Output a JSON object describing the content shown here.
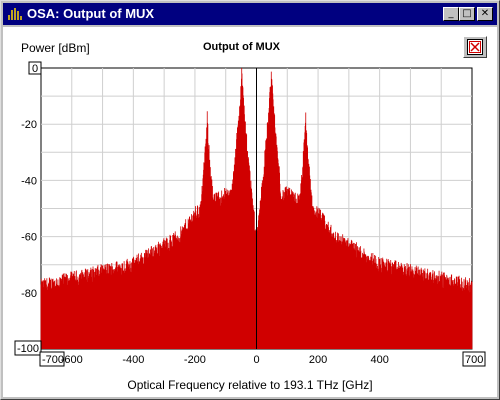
{
  "window": {
    "title": "OSA: Output of MUX",
    "buttons": {
      "minimize": "_",
      "maximize": "□",
      "close": "✕"
    }
  },
  "chart_data": {
    "type": "line",
    "title": "Output of MUX",
    "xlabel": "Optical Frequency relative to 193.1 THz [GHz]",
    "ylabel": "Power [dBm]",
    "xlim": [
      -700,
      700
    ],
    "ylim": [
      -100,
      0
    ],
    "grid": true,
    "x_ticks": [
      "-700",
      "-600",
      "-400",
      "-200",
      "0",
      "200",
      "400",
      "700"
    ],
    "y_ticks": [
      "0",
      "-20",
      "-40",
      "-60",
      "-80",
      "-100"
    ],
    "series": [
      {
        "color": "#d00000",
        "peaks": [
          {
            "x": -160,
            "y": -18
          },
          {
            "x": -48,
            "y": -1
          },
          {
            "x": 48,
            "y": -1
          },
          {
            "x": 160,
            "y": -18
          }
        ],
        "noise_floor_dBm": -100,
        "noise_envelope": [
          {
            "x": -700,
            "y": -78
          },
          {
            "x": -400,
            "y": -70
          },
          {
            "x": -250,
            "y": -60
          },
          {
            "x": -200,
            "y": -52
          },
          {
            "x": -100,
            "y": -45
          },
          {
            "x": -30,
            "y": -48
          },
          {
            "x": 0,
            "y": -60
          },
          {
            "x": 30,
            "y": -48
          },
          {
            "x": 100,
            "y": -45
          },
          {
            "x": 200,
            "y": -52
          },
          {
            "x": 250,
            "y": -60
          },
          {
            "x": 400,
            "y": -70
          },
          {
            "x": 700,
            "y": -78
          }
        ]
      }
    ]
  }
}
